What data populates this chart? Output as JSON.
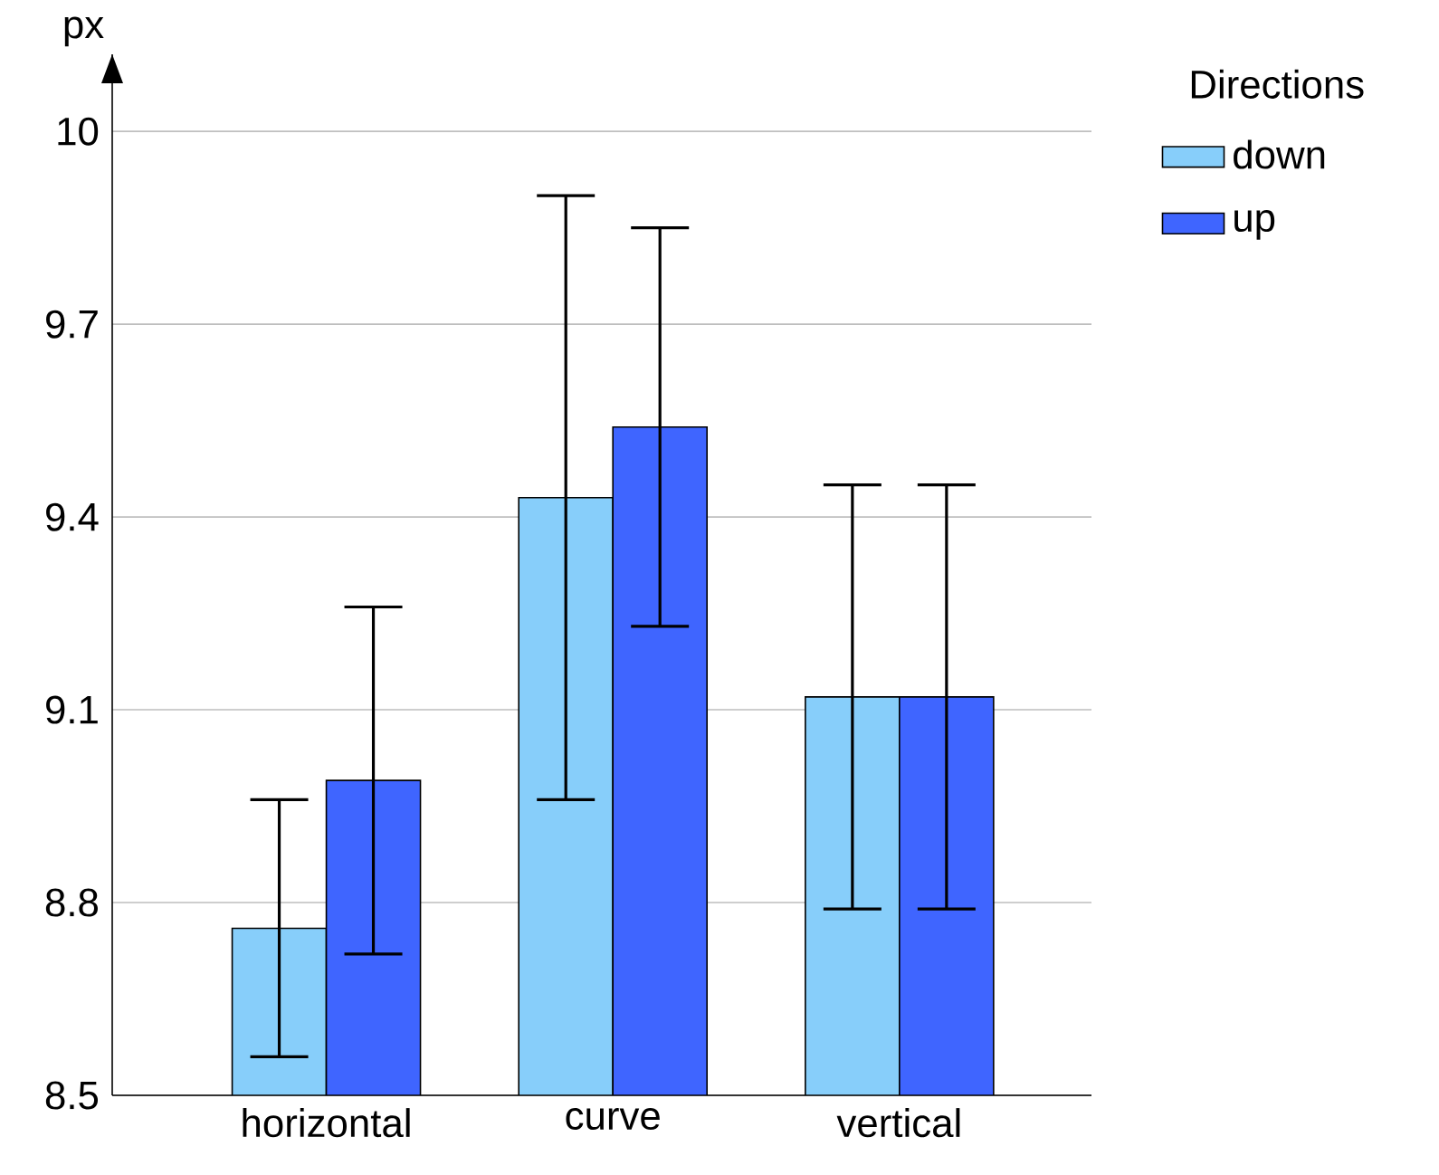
{
  "chart_data": {
    "type": "bar",
    "ylabel": "px",
    "legend_title": "Directions",
    "categories": [
      "horizontal",
      "curve",
      "vertical"
    ],
    "series": [
      {
        "name": "down",
        "color": "#87cefa",
        "values": [
          8.76,
          9.43,
          9.12
        ],
        "errors": [
          0.2,
          0.47,
          0.33
        ]
      },
      {
        "name": "up",
        "color": "#3f65ff",
        "values": [
          8.99,
          9.54,
          9.12
        ],
        "errors": [
          0.27,
          0.31,
          0.33
        ]
      }
    ],
    "ylim": [
      8.5,
      10.12
    ],
    "yticks": [
      8.5,
      8.8,
      9.1,
      9.4,
      9.7,
      10
    ],
    "grid": "y",
    "legend": "top right"
  }
}
